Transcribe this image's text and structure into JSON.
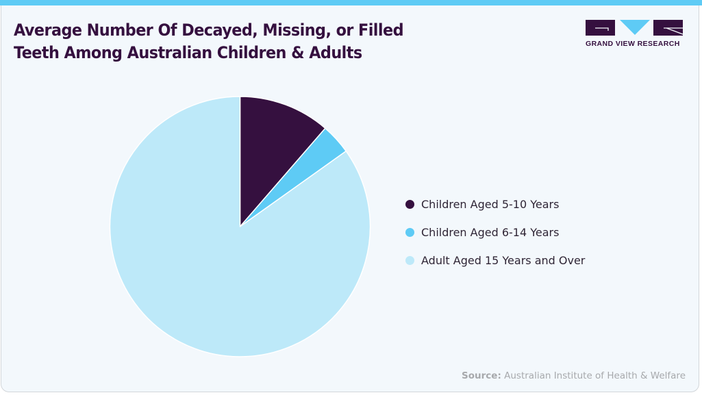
{
  "header": {
    "title_line1": "Average Number Of Decayed, Missing, or Filled",
    "title_line2": "Teeth Among Australian Children & Adults",
    "logo_text": "GRAND VIEW RESEARCH"
  },
  "colors": {
    "accent_bar": "#5ecbf5",
    "background": "#f3f8fc",
    "title": "#35103f",
    "series": [
      "#35103f",
      "#5ecbf5",
      "#bde9f9"
    ]
  },
  "legend": {
    "items": [
      {
        "label": "Children Aged 5-10 Years",
        "color": "#35103f"
      },
      {
        "label": "Children Aged 6-14 Years",
        "color": "#5ecbf5"
      },
      {
        "label": "Adult Aged 15 Years and Over",
        "color": "#bde9f9"
      }
    ]
  },
  "footer": {
    "source_label": "Source:",
    "source_text": " Australian Institute of Health & Welfare"
  },
  "chart_data": {
    "type": "pie",
    "title": "Average Number Of Decayed, Missing, or Filled Teeth Among Australian Children & Adults",
    "categories": [
      "Children Aged 5-10 Years",
      "Children Aged 6-14 Years",
      "Adult Aged 15 Years and Over"
    ],
    "values": [
      1.5,
      0.5,
      11.2
    ],
    "percent": [
      11.4,
      3.8,
      84.8
    ],
    "start_angle_deg": 0,
    "direction": "clockwise",
    "legend_position": "right",
    "source": "Australian Institute of Health & Welfare"
  }
}
